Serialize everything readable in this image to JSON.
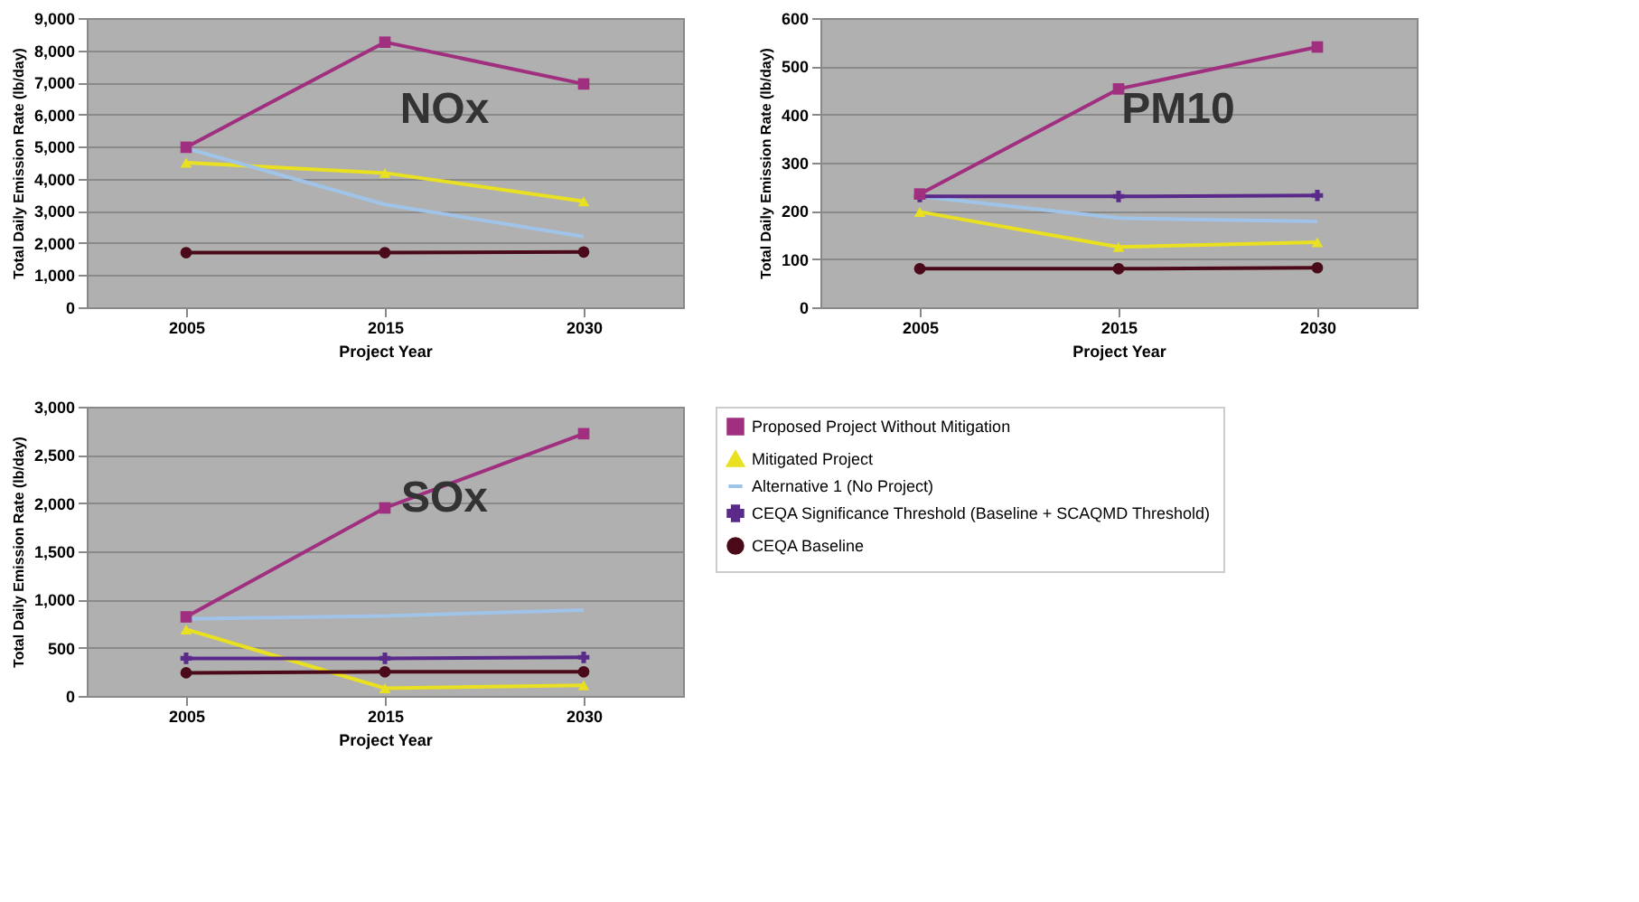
{
  "chart_data": [
    {
      "type": "line",
      "title": "NOx",
      "xlabel": "Project Year",
      "ylabel": "Total Daily Emission Rate (lb/day)",
      "categories": [
        "2005",
        "2015",
        "2030"
      ],
      "ylim": [
        0,
        9000
      ],
      "yticks": [
        {
          "value": 0,
          "label": "0"
        },
        {
          "value": 1000,
          "label": "1,000"
        },
        {
          "value": 2000,
          "label": "2,000"
        },
        {
          "value": 3000,
          "label": "3,000"
        },
        {
          "value": 4000,
          "label": "4,000"
        },
        {
          "value": 5000,
          "label": "5,000"
        },
        {
          "value": 6000,
          "label": "6,000"
        },
        {
          "value": 7000,
          "label": "7,000"
        },
        {
          "value": 8000,
          "label": "8,000"
        },
        {
          "value": 9000,
          "label": "9,000"
        }
      ],
      "grid": "y",
      "legend": false,
      "series": [
        {
          "color": "#a0307f",
          "marker": "square",
          "values": [
            4980,
            8250,
            6950
          ]
        },
        {
          "color": "#e8e020",
          "marker": "triangle",
          "values": [
            4500,
            4180,
            3300
          ]
        },
        {
          "color": "#a0c4e8",
          "marker": "none",
          "values": [
            4950,
            3200,
            2200
          ]
        },
        {
          "color": "#5a2a8a",
          "marker": "cross",
          "values": [
            null,
            null,
            null
          ]
        },
        {
          "color": "#4a0a1a",
          "marker": "circle",
          "values": [
            1700,
            1700,
            1720
          ]
        }
      ]
    },
    {
      "type": "line",
      "title": "PM10",
      "xlabel": "Project Year",
      "ylabel": "Total Daily Emission Rate (lb/day)",
      "categories": [
        "2005",
        "2015",
        "2030"
      ],
      "ylim": [
        0,
        600
      ],
      "yticks": [
        0,
        100,
        200,
        300,
        400,
        500,
        600
      ],
      "grid": "y",
      "legend": false,
      "series": [
        {
          "color": "#a0307f",
          "marker": "square",
          "values": [
            235,
            453,
            540
          ]
        },
        {
          "color": "#e8e020",
          "marker": "triangle",
          "values": [
            198,
            125,
            135
          ]
        },
        {
          "color": "#a0c4e8",
          "marker": "none",
          "values": [
            230,
            185,
            178
          ]
        },
        {
          "color": "#5a2a8a",
          "marker": "cross",
          "values": [
            230,
            230,
            232
          ]
        },
        {
          "color": "#4a0a1a",
          "marker": "circle",
          "values": [
            80,
            80,
            82
          ]
        }
      ]
    },
    {
      "type": "line",
      "title": "SOx",
      "xlabel": "Project Year",
      "ylabel": "Total Daily Emission Rate (lb/day)",
      "categories": [
        "2005",
        "2015",
        "2030"
      ],
      "ylim": [
        0,
        3000
      ],
      "yticks": [
        0,
        500,
        {
          "value": 1000,
          "label": "1,000"
        },
        {
          "value": 1500,
          "label": "1,500"
        },
        {
          "value": 2000,
          "label": "2,000"
        },
        {
          "value": 2500,
          "label": "2,500"
        },
        {
          "value": 3000,
          "label": "3,000"
        }
      ],
      "grid": "y",
      "legend": "right",
      "series": [
        {
          "name": "Proposed Project Without Mitigation",
          "color": "#a0307f",
          "marker": "square",
          "values": [
            820,
            1950,
            2720
          ]
        },
        {
          "name": "Mitigated Project",
          "color": "#e8e020",
          "marker": "triangle",
          "values": [
            690,
            80,
            110
          ]
        },
        {
          "name": "Alternative 1 (No Project)",
          "color": "#a0c4e8",
          "marker": "none",
          "values": [
            800,
            830,
            890
          ]
        },
        {
          "name": "CEQA Significance Threshold (Baseline + SCAQMD Threshold)",
          "color": "#5a2a8a",
          "marker": "cross",
          "values": [
            390,
            390,
            400
          ]
        },
        {
          "name": "CEQA Baseline",
          "color": "#4a0a1a",
          "marker": "circle",
          "values": [
            240,
            250,
            250
          ]
        }
      ]
    }
  ]
}
